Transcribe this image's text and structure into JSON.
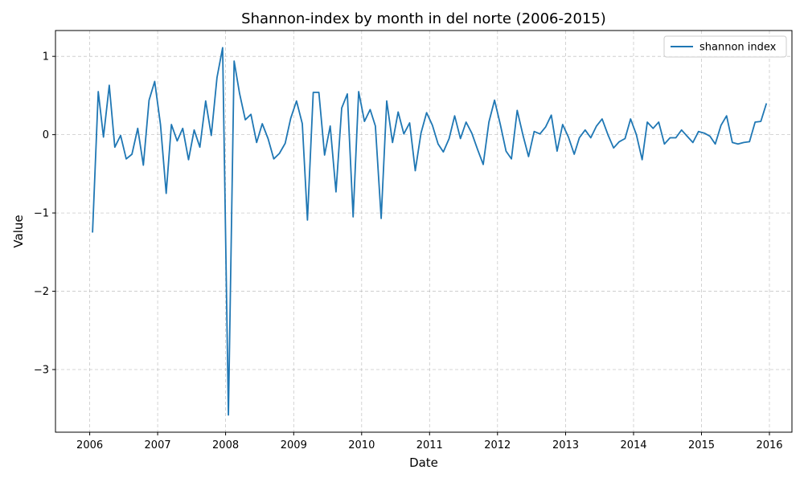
{
  "chart_data": {
    "type": "line",
    "title": "Shannon-index by month in del norte (2006-2015)",
    "xlabel": "Date",
    "ylabel": "Value",
    "legend_position": "top-right",
    "grid": true,
    "xlim": [
      "2005-07-01",
      "2016-05-01"
    ],
    "ylim": [
      -3.8,
      1.33
    ],
    "xticks": [
      {
        "date": "2006-01-01",
        "label": "2006"
      },
      {
        "date": "2007-01-01",
        "label": "2007"
      },
      {
        "date": "2008-01-01",
        "label": "2008"
      },
      {
        "date": "2009-01-01",
        "label": "2009"
      },
      {
        "date": "2010-01-01",
        "label": "2010"
      },
      {
        "date": "2011-01-01",
        "label": "2011"
      },
      {
        "date": "2012-01-01",
        "label": "2012"
      },
      {
        "date": "2013-01-01",
        "label": "2013"
      },
      {
        "date": "2014-01-01",
        "label": "2014"
      },
      {
        "date": "2015-01-01",
        "label": "2015"
      },
      {
        "date": "2016-01-01",
        "label": "2016"
      }
    ],
    "yticks": [
      {
        "value": 1,
        "label": "1"
      },
      {
        "value": 0,
        "label": "0"
      },
      {
        "value": -1,
        "label": "−1"
      },
      {
        "value": -2,
        "label": "−2"
      },
      {
        "value": -3,
        "label": "−3"
      }
    ],
    "series": [
      {
        "name": "shannon index",
        "color": "#1f77b4",
        "x": [
          "2006-01",
          "2006-02",
          "2006-03",
          "2006-04",
          "2006-05",
          "2006-06",
          "2006-07",
          "2006-08",
          "2006-09",
          "2006-10",
          "2006-11",
          "2006-12",
          "2007-01",
          "2007-02",
          "2007-03",
          "2007-04",
          "2007-05",
          "2007-06",
          "2007-07",
          "2007-08",
          "2007-09",
          "2007-10",
          "2007-11",
          "2007-12",
          "2008-01",
          "2008-02",
          "2008-03",
          "2008-04",
          "2008-05",
          "2008-06",
          "2008-07",
          "2008-08",
          "2008-09",
          "2008-10",
          "2008-11",
          "2008-12",
          "2009-01",
          "2009-02",
          "2009-03",
          "2009-04",
          "2009-05",
          "2009-06",
          "2009-07",
          "2009-08",
          "2009-09",
          "2009-10",
          "2009-11",
          "2009-12",
          "2010-01",
          "2010-02",
          "2010-03",
          "2010-04",
          "2010-05",
          "2010-06",
          "2010-07",
          "2010-08",
          "2010-09",
          "2010-10",
          "2010-11",
          "2010-12",
          "2011-01",
          "2011-02",
          "2011-03",
          "2011-04",
          "2011-05",
          "2011-06",
          "2011-07",
          "2011-08",
          "2011-09",
          "2011-10",
          "2011-11",
          "2011-12",
          "2012-01",
          "2012-02",
          "2012-03",
          "2012-04",
          "2012-05",
          "2012-06",
          "2012-07",
          "2012-08",
          "2012-09",
          "2012-10",
          "2012-11",
          "2012-12",
          "2013-01",
          "2013-02",
          "2013-03",
          "2013-04",
          "2013-05",
          "2013-06",
          "2013-07",
          "2013-08",
          "2013-09",
          "2013-10",
          "2013-11",
          "2013-12",
          "2014-01",
          "2014-02",
          "2014-03",
          "2014-04",
          "2014-05",
          "2014-06",
          "2014-07",
          "2014-08",
          "2014-09",
          "2014-10",
          "2014-11",
          "2014-12",
          "2015-01",
          "2015-02",
          "2015-03",
          "2015-04",
          "2015-05",
          "2015-06",
          "2015-07",
          "2015-08",
          "2015-09",
          "2015-10",
          "2015-11",
          "2015-12"
        ],
        "values": [
          -1.25,
          0.55,
          -0.03,
          0.63,
          -0.16,
          -0.01,
          -0.31,
          -0.25,
          0.08,
          -0.39,
          0.44,
          0.68,
          0.13,
          -0.75,
          0.13,
          -0.08,
          0.08,
          -0.32,
          0.06,
          -0.16,
          0.43,
          -0.01,
          0.73,
          1.11,
          -3.58,
          0.94,
          0.53,
          0.19,
          0.26,
          -0.1,
          0.14,
          -0.05,
          -0.31,
          -0.24,
          -0.11,
          0.21,
          0.43,
          0.14,
          -1.09,
          0.54,
          0.54,
          -0.26,
          0.11,
          -0.73,
          0.34,
          0.52,
          -1.05,
          0.55,
          0.17,
          0.32,
          0.11,
          -1.07,
          0.43,
          -0.1,
          0.29,
          0.01,
          0.15,
          -0.46,
          0.02,
          0.28,
          0.12,
          -0.12,
          -0.22,
          -0.05,
          0.24,
          -0.05,
          0.16,
          0.02,
          -0.19,
          -0.38,
          0.16,
          0.44,
          0.13,
          -0.21,
          -0.31,
          0.31,
          0.0,
          -0.28,
          0.04,
          0.01,
          0.1,
          0.25,
          -0.21,
          0.13,
          -0.03,
          -0.25,
          -0.04,
          0.06,
          -0.04,
          0.11,
          0.2,
          0.0,
          -0.17,
          -0.09,
          -0.05,
          0.2,
          0.0,
          -0.32,
          0.16,
          0.08,
          0.16,
          -0.12,
          -0.04,
          -0.04,
          0.06,
          -0.02,
          -0.1,
          0.04,
          0.02,
          -0.02,
          -0.12,
          0.12,
          0.24,
          -0.1,
          -0.12,
          -0.1,
          -0.09,
          0.16,
          0.17,
          0.4
        ]
      }
    ]
  }
}
